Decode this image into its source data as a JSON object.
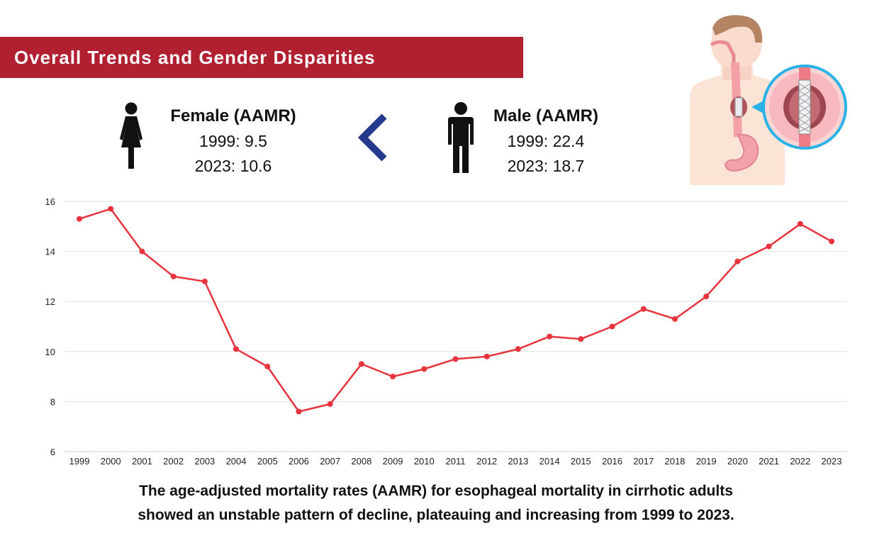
{
  "header": {
    "title": "Overall Trends and Gender Disparities"
  },
  "female": {
    "title": "Female (AAMR)",
    "line1": "1999: 9.5",
    "line2": "2023: 10.6"
  },
  "male": {
    "title": "Male (AAMR)",
    "line1": "1999: 22.4",
    "line2": "2023: 18.7"
  },
  "comparison_symbol": "<",
  "caption": {
    "line1": "The age-adjusted mortality rates (AAMR) for esophageal mortality in cirrhotic adults",
    "line2": "showed an unstable pattern of decline, plateauing and increasing from 1999 to 2023."
  },
  "colors": {
    "banner": "#b02030",
    "line": "#e8343c",
    "chevron": "#253a8c"
  },
  "icons": [
    "female-person-icon",
    "less-than-chevron-icon",
    "male-person-icon",
    "esophagus-stent-illustration"
  ],
  "chart_data": {
    "type": "line",
    "title": "",
    "xlabel": "",
    "ylabel": "",
    "x": [
      "1999",
      "2000",
      "2001",
      "2002",
      "2003",
      "2004",
      "2005",
      "2006",
      "2007",
      "2008",
      "2009",
      "2010",
      "2011",
      "2012",
      "2013",
      "2014",
      "2015",
      "2016",
      "2017",
      "2018",
      "2019",
      "2020",
      "2021",
      "2022",
      "2023"
    ],
    "series": [
      {
        "values": [
          15.3,
          15.7,
          14.0,
          13.0,
          12.8,
          10.1,
          9.4,
          7.6,
          7.9,
          9.5,
          9.0,
          9.3,
          9.7,
          9.8,
          10.1,
          10.6,
          10.5,
          11.0,
          11.7,
          11.3,
          12.2,
          13.6,
          14.2,
          15.1,
          14.4
        ]
      }
    ],
    "ylim": [
      6,
      16
    ],
    "yticks": [
      6,
      8,
      10,
      12,
      14,
      16
    ],
    "grid": true,
    "markers": true
  }
}
